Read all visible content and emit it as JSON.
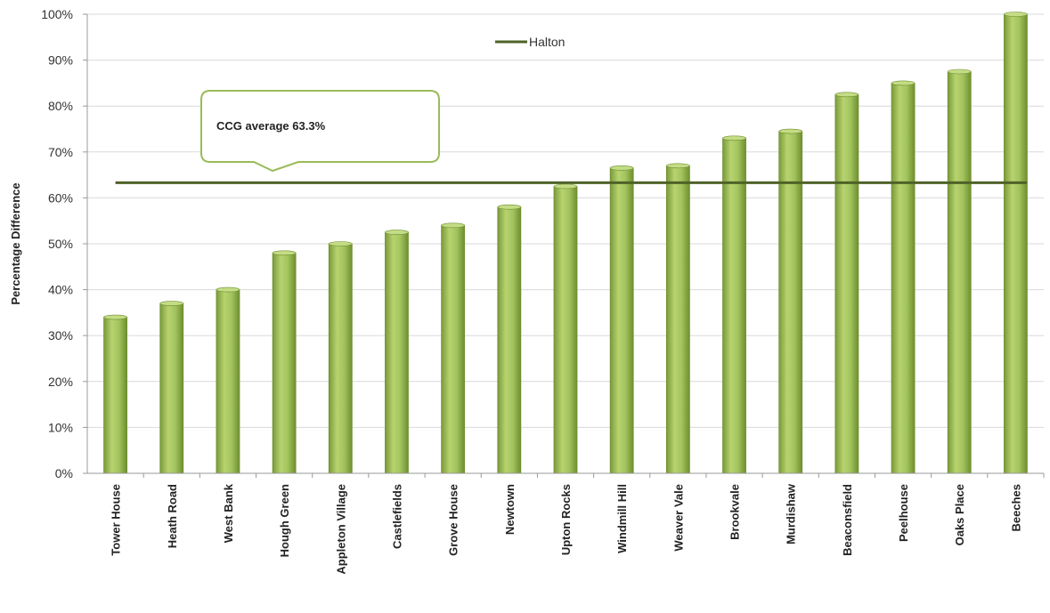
{
  "chart_data": {
    "type": "bar",
    "categories": [
      "Tower House",
      "Heath Road",
      "West Bank",
      "Hough Green",
      "Appleton Village",
      "Castlefields",
      "Grove House",
      "Newtown",
      "Upton Rocks",
      "Windmill Hill",
      "Weaver Vale",
      "Brookvale",
      "Murdishaw",
      "Beaconsfield",
      "Peelhouse",
      "Oaks Place",
      "Beeches"
    ],
    "values": [
      34,
      37,
      40,
      48,
      50,
      52.5,
      54,
      58,
      62.5,
      66.5,
      67,
      73,
      74.5,
      82.5,
      85,
      87.5,
      100
    ],
    "reference_line": {
      "name": "Halton",
      "value": 63.3
    },
    "annotation": "CCG average 63.3%",
    "ylabel": "Percentage Difference",
    "xlabel": "",
    "ylim": [
      0,
      100
    ],
    "yticks": [
      0,
      10,
      20,
      30,
      40,
      50,
      60,
      70,
      80,
      90,
      100
    ],
    "ytick_labels": [
      "0%",
      "10%",
      "20%",
      "30%",
      "40%",
      "50%",
      "60%",
      "70%",
      "80%",
      "90%",
      "100%"
    ],
    "grid": true,
    "legend": "top-center",
    "colors": {
      "bar": "#9bbb59",
      "bar_dark": "#6f8f30",
      "line": "#4f6228",
      "grid": "#d9d9d9",
      "callout_border": "#9bbb59"
    }
  }
}
